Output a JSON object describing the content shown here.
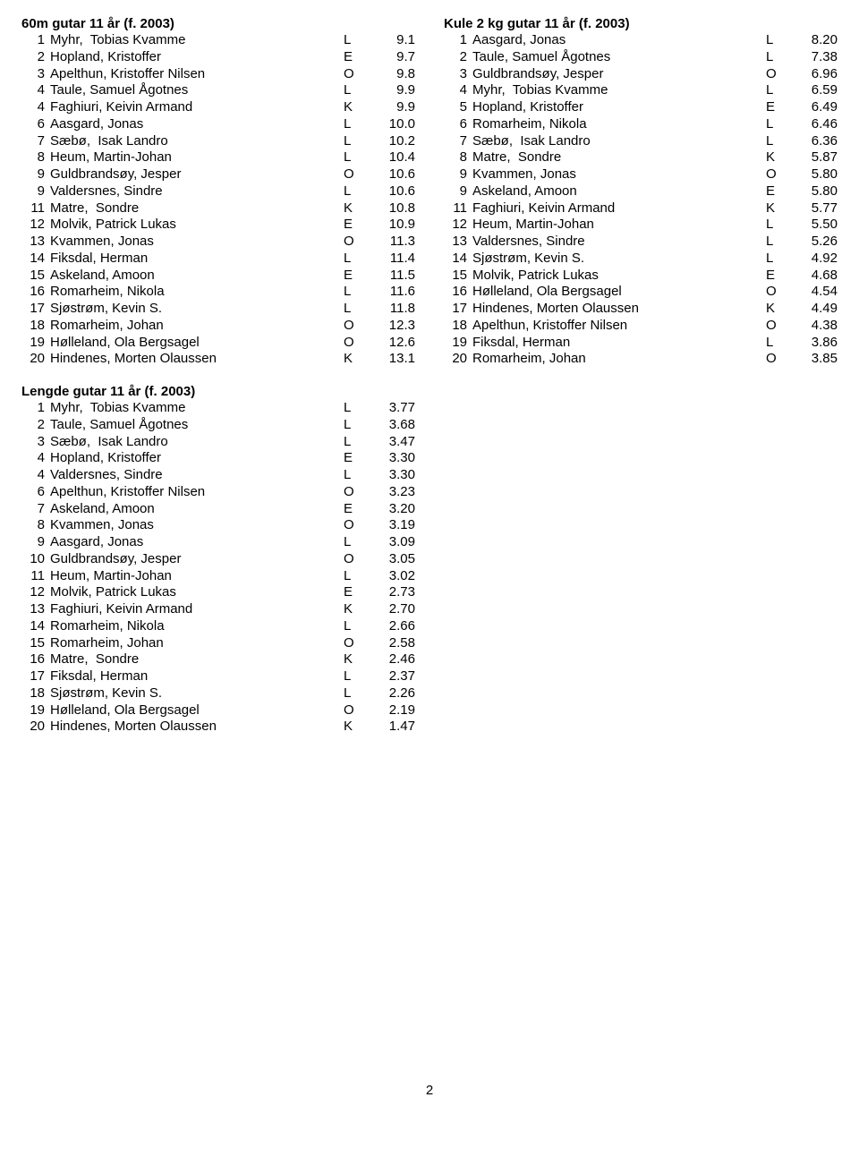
{
  "page_number": "2",
  "sections": [
    {
      "key": "sec60m",
      "title": "60m gutar 11 år (f. 2003)",
      "rows": [
        {
          "rank": "1",
          "name": "Myhr,  Tobias Kvamme",
          "club": "L",
          "result": "9.1"
        },
        {
          "rank": "2",
          "name": "Hopland, Kristoffer",
          "club": "E",
          "result": "9.7"
        },
        {
          "rank": "3",
          "name": "Apelthun, Kristoffer Nilsen",
          "club": "O",
          "result": "9.8"
        },
        {
          "rank": "4",
          "name": "Taule, Samuel Ågotnes",
          "club": "L",
          "result": "9.9"
        },
        {
          "rank": "4",
          "name": "Faghiuri, Keivin Armand",
          "club": "K",
          "result": "9.9"
        },
        {
          "rank": "6",
          "name": "Aasgard, Jonas",
          "club": "L",
          "result": "10.0"
        },
        {
          "rank": "7",
          "name": "Sæbø,  Isak Landro",
          "club": "L",
          "result": "10.2"
        },
        {
          "rank": "8",
          "name": "Heum, Martin-Johan",
          "club": "L",
          "result": "10.4"
        },
        {
          "rank": "9",
          "name": "Guldbrandsøy, Jesper",
          "club": "O",
          "result": "10.6"
        },
        {
          "rank": "9",
          "name": "Valdersnes, Sindre",
          "club": "L",
          "result": "10.6"
        },
        {
          "rank": "11",
          "name": "Matre,  Sondre",
          "club": "K",
          "result": "10.8"
        },
        {
          "rank": "12",
          "name": "Molvik, Patrick Lukas",
          "club": "E",
          "result": "10.9"
        },
        {
          "rank": "13",
          "name": "Kvammen, Jonas",
          "club": "O",
          "result": "11.3"
        },
        {
          "rank": "14",
          "name": "Fiksdal, Herman",
          "club": "L",
          "result": "11.4"
        },
        {
          "rank": "15",
          "name": "Askeland, Amoon",
          "club": "E",
          "result": "11.5"
        },
        {
          "rank": "16",
          "name": "Romarheim, Nikola",
          "club": "L",
          "result": "11.6"
        },
        {
          "rank": "17",
          "name": "Sjøstrøm, Kevin S.",
          "club": "L",
          "result": "11.8"
        },
        {
          "rank": "18",
          "name": "Romarheim, Johan",
          "club": "O",
          "result": "12.3"
        },
        {
          "rank": "19",
          "name": "Hølleland, Ola Bergsagel",
          "club": "O",
          "result": "12.6"
        },
        {
          "rank": "20",
          "name": "Hindenes, Morten Olaussen",
          "club": "K",
          "result": "13.1"
        }
      ]
    },
    {
      "key": "seckule",
      "title": "Kule 2 kg gutar 11 år (f. 2003)",
      "rows": [
        {
          "rank": "1",
          "name": "Aasgard, Jonas",
          "club": "L",
          "result": "8.20"
        },
        {
          "rank": "2",
          "name": "Taule, Samuel Ågotnes",
          "club": "L",
          "result": "7.38"
        },
        {
          "rank": "3",
          "name": "Guldbrandsøy, Jesper",
          "club": "O",
          "result": "6.96"
        },
        {
          "rank": "4",
          "name": "Myhr,  Tobias Kvamme",
          "club": "L",
          "result": "6.59"
        },
        {
          "rank": "5",
          "name": "Hopland, Kristoffer",
          "club": "E",
          "result": "6.49"
        },
        {
          "rank": "6",
          "name": "Romarheim, Nikola",
          "club": "L",
          "result": "6.46"
        },
        {
          "rank": "7",
          "name": "Sæbø,  Isak Landro",
          "club": "L",
          "result": "6.36"
        },
        {
          "rank": "8",
          "name": "Matre,  Sondre",
          "club": "K",
          "result": "5.87"
        },
        {
          "rank": "9",
          "name": "Kvammen, Jonas",
          "club": "O",
          "result": "5.80"
        },
        {
          "rank": "9",
          "name": "Askeland, Amoon",
          "club": "E",
          "result": "5.80"
        },
        {
          "rank": "11",
          "name": "Faghiuri, Keivin Armand",
          "club": "K",
          "result": "5.77"
        },
        {
          "rank": "12",
          "name": "Heum, Martin-Johan",
          "club": "L",
          "result": "5.50"
        },
        {
          "rank": "13",
          "name": "Valdersnes, Sindre",
          "club": "L",
          "result": "5.26"
        },
        {
          "rank": "14",
          "name": "Sjøstrøm, Kevin S.",
          "club": "L",
          "result": "4.92"
        },
        {
          "rank": "15",
          "name": "Molvik, Patrick Lukas",
          "club": "E",
          "result": "4.68"
        },
        {
          "rank": "16",
          "name": "Hølleland, Ola Bergsagel",
          "club": "O",
          "result": "4.54"
        },
        {
          "rank": "17",
          "name": "Hindenes, Morten Olaussen",
          "club": "K",
          "result": "4.49"
        },
        {
          "rank": "18",
          "name": "Apelthun, Kristoffer Nilsen",
          "club": "O",
          "result": "4.38"
        },
        {
          "rank": "19",
          "name": "Fiksdal, Herman",
          "club": "L",
          "result": "3.86"
        },
        {
          "rank": "20",
          "name": "Romarheim, Johan",
          "club": "O",
          "result": "3.85"
        }
      ]
    },
    {
      "key": "seclengde",
      "title": "Lengde gutar 11 år (f. 2003)",
      "rows": [
        {
          "rank": "1",
          "name": "Myhr,  Tobias Kvamme",
          "club": "L",
          "result": "3.77"
        },
        {
          "rank": "2",
          "name": "Taule, Samuel Ågotnes",
          "club": "L",
          "result": "3.68"
        },
        {
          "rank": "3",
          "name": "Sæbø,  Isak Landro",
          "club": "L",
          "result": "3.47"
        },
        {
          "rank": "4",
          "name": "Hopland, Kristoffer",
          "club": "E",
          "result": "3.30"
        },
        {
          "rank": "4",
          "name": "Valdersnes, Sindre",
          "club": "L",
          "result": "3.30"
        },
        {
          "rank": "6",
          "name": "Apelthun, Kristoffer Nilsen",
          "club": "O",
          "result": "3.23"
        },
        {
          "rank": "7",
          "name": "Askeland, Amoon",
          "club": "E",
          "result": "3.20"
        },
        {
          "rank": "8",
          "name": "Kvammen, Jonas",
          "club": "O",
          "result": "3.19"
        },
        {
          "rank": "9",
          "name": "Aasgard, Jonas",
          "club": "L",
          "result": "3.09"
        },
        {
          "rank": "10",
          "name": "Guldbrandsøy, Jesper",
          "club": "O",
          "result": "3.05"
        },
        {
          "rank": "11",
          "name": "Heum, Martin-Johan",
          "club": "L",
          "result": "3.02"
        },
        {
          "rank": "12",
          "name": "Molvik, Patrick Lukas",
          "club": "E",
          "result": "2.73"
        },
        {
          "rank": "13",
          "name": "Faghiuri, Keivin Armand",
          "club": "K",
          "result": "2.70"
        },
        {
          "rank": "14",
          "name": "Romarheim, Nikola",
          "club": "L",
          "result": "2.66"
        },
        {
          "rank": "15",
          "name": "Romarheim, Johan",
          "club": "O",
          "result": "2.58"
        },
        {
          "rank": "16",
          "name": "Matre,  Sondre",
          "club": "K",
          "result": "2.46"
        },
        {
          "rank": "17",
          "name": "Fiksdal, Herman",
          "club": "L",
          "result": "2.37"
        },
        {
          "rank": "18",
          "name": "Sjøstrøm, Kevin S.",
          "club": "L",
          "result": "2.26"
        },
        {
          "rank": "19",
          "name": "Hølleland, Ola Bergsagel",
          "club": "O",
          "result": "2.19"
        },
        {
          "rank": "20",
          "name": "Hindenes, Morten Olaussen",
          "club": "K",
          "result": "1.47"
        }
      ]
    }
  ]
}
